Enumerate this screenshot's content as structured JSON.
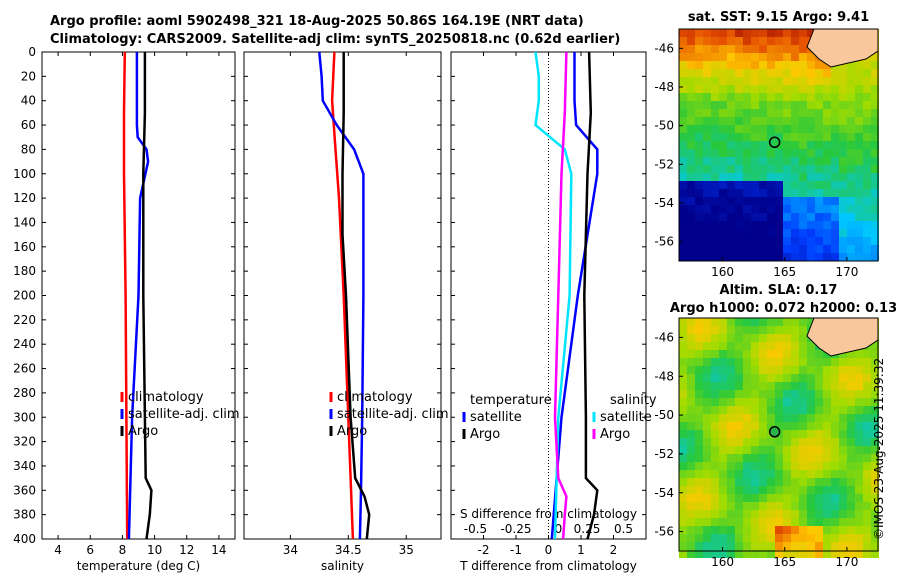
{
  "title_line1": "Argo profile: aoml 5902498_321 18-Aug-2025 50.86S 164.19E (NRT data)",
  "title_line2": "Climatology: CARS2009. Satellite-adj clim: synTS_20250818.nc (0.62d earlier)",
  "watermark": "©IMOS 23-Aug-2025 11:39:32",
  "colors": {
    "climatology": "#ff0000",
    "satellite": "#0000ff",
    "argo": "#000000",
    "sat_diff_s": "#00e5ff",
    "argo_diff_s": "#ff00ff"
  },
  "chart_data": [
    {
      "type": "line",
      "id": "temperature",
      "xlabel": "temperature (deg C)",
      "xlim": [
        3,
        15
      ],
      "xticks": [
        4,
        6,
        8,
        10,
        12,
        14
      ],
      "ylim": [
        400,
        0
      ],
      "yticks": [
        0,
        20,
        40,
        60,
        80,
        100,
        120,
        140,
        160,
        180,
        200,
        220,
        240,
        260,
        280,
        300,
        320,
        340,
        360,
        380,
        400
      ],
      "legend": [
        "climatology",
        "satellite-adj. clim",
        "Argo"
      ],
      "series": [
        {
          "name": "climatology",
          "color": "#ff0000",
          "depth": [
            0,
            50,
            100,
            200,
            300,
            400
          ],
          "values": [
            8.15,
            8.1,
            8.1,
            8.2,
            8.25,
            8.3
          ]
        },
        {
          "name": "satellite-adj. clim",
          "color": "#0000ff",
          "depth": [
            0,
            20,
            40,
            60,
            70,
            80,
            90,
            120,
            200,
            300,
            400
          ],
          "values": [
            8.9,
            8.9,
            8.9,
            8.9,
            8.95,
            9.5,
            9.6,
            9.1,
            9.0,
            8.6,
            8.4
          ]
        },
        {
          "name": "Argo",
          "color": "#000000",
          "depth": [
            0,
            50,
            100,
            200,
            300,
            350,
            360,
            380,
            400
          ],
          "values": [
            9.4,
            9.4,
            9.3,
            9.3,
            9.4,
            9.45,
            9.8,
            9.7,
            9.5
          ]
        }
      ]
    },
    {
      "type": "line",
      "id": "salinity",
      "xlabel": "salinity",
      "xlim": [
        33.6,
        35.3
      ],
      "xticks": [
        34,
        34.5,
        35
      ],
      "ylim": [
        400,
        0
      ],
      "legend": [
        "climatology",
        "satellite-adj. clim",
        "Argo"
      ],
      "series": [
        {
          "name": "climatology",
          "color": "#ff0000",
          "depth": [
            0,
            40,
            80,
            120,
            200,
            300,
            400
          ],
          "values": [
            34.38,
            34.36,
            34.39,
            34.42,
            34.46,
            34.5,
            34.54
          ]
        },
        {
          "name": "satellite-adj. clim",
          "color": "#0000ff",
          "depth": [
            0,
            20,
            40,
            60,
            80,
            100,
            150,
            200,
            300,
            360,
            400
          ],
          "values": [
            34.25,
            34.27,
            34.28,
            34.4,
            34.55,
            34.63,
            34.63,
            34.63,
            34.62,
            34.61,
            34.6
          ]
        },
        {
          "name": "Argo",
          "color": "#000000",
          "depth": [
            0,
            50,
            100,
            150,
            200,
            300,
            350,
            365,
            380,
            400
          ],
          "values": [
            34.46,
            34.46,
            34.45,
            34.45,
            34.48,
            34.52,
            34.56,
            34.64,
            34.68,
            34.66
          ]
        }
      ]
    },
    {
      "type": "line",
      "id": "difference",
      "xlabel": "T difference from climatology",
      "xlabel_top": "S difference from climatology",
      "xlim": [
        -3,
        3
      ],
      "xticks": [
        -2,
        -1,
        0,
        1,
        2
      ],
      "xticks_s_labels": [
        "-0.5",
        "-0.25",
        "0",
        "0.25",
        "0.5"
      ],
      "xticks_s_pos": [
        -2,
        -1,
        0,
        1,
        2
      ],
      "ylim": [
        400,
        0
      ],
      "legend_left_title": "temperature",
      "legend_right_title": "salinity",
      "legend_left": [
        "satellite",
        "Argo"
      ],
      "legend_right": [
        "satellite",
        "Argo"
      ],
      "series": [
        {
          "name": "satellite T",
          "color": "#0000ff",
          "depth": [
            0,
            20,
            40,
            60,
            80,
            100,
            200,
            300,
            400
          ],
          "values": [
            0.8,
            0.8,
            0.8,
            0.85,
            1.5,
            1.5,
            0.9,
            0.4,
            0.1
          ]
        },
        {
          "name": "Argo T",
          "color": "#000000",
          "depth": [
            0,
            50,
            100,
            200,
            300,
            350,
            360,
            380,
            400
          ],
          "values": [
            1.25,
            1.3,
            1.2,
            1.1,
            1.15,
            1.15,
            1.5,
            1.4,
            1.2
          ]
        },
        {
          "name": "satellite S",
          "color": "#00e5ff",
          "depth": [
            0,
            20,
            40,
            60,
            80,
            100,
            200,
            300,
            400
          ],
          "values": [
            -0.4,
            -0.3,
            -0.3,
            -0.4,
            0.5,
            0.7,
            0.65,
            0.3,
            0.2
          ]
        },
        {
          "name": "Argo S",
          "color": "#ff00ff",
          "depth": [
            0,
            50,
            100,
            200,
            300,
            350,
            365,
            380,
            400
          ],
          "values": [
            0.55,
            0.5,
            0.4,
            0.3,
            0.2,
            0.3,
            0.55,
            0.5,
            0.45
          ]
        }
      ]
    }
  ],
  "maps": [
    {
      "title": "sat. SST: 9.15 Argo: 9.41",
      "title2": "",
      "xlim": [
        156.5,
        172.5
      ],
      "ylim": [
        -57,
        -45
      ],
      "xticks": [
        160,
        165,
        170
      ],
      "yticks": [
        -46,
        -48,
        -50,
        -52,
        -54,
        -56
      ],
      "argo_lon": 164.19,
      "argo_lat": -50.86
    },
    {
      "title": "Altim. SLA: 0.17",
      "title2": "Argo h1000: 0.072 h2000: 0.13",
      "xlim": [
        156.5,
        172.5
      ],
      "ylim": [
        -57,
        -45
      ],
      "xticks": [
        160,
        165,
        170
      ],
      "yticks": [
        -46,
        -48,
        -50,
        -52,
        -54,
        -56
      ],
      "argo_lon": 164.19,
      "argo_lat": -50.86
    }
  ]
}
